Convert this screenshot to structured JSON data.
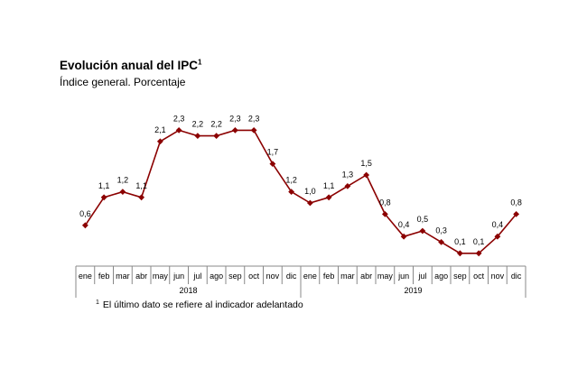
{
  "title": "Evolución anual del IPC",
  "title_sup": "1",
  "subtitle": "Índice general. Porcentaje",
  "footnote": {
    "marker": "1",
    "text": "El último dato se refiere al indicador adelantado"
  },
  "chart_data": {
    "type": "line",
    "title": "Evolución anual del IPC",
    "subtitle": "Índice general. Porcentaje",
    "xlabel": "",
    "ylabel": "",
    "grid": false,
    "legend": "none",
    "line_color": "#8B0000",
    "ylim": [
      0,
      2.5
    ],
    "categories": [
      "ene",
      "feb",
      "mar",
      "abr",
      "may",
      "jun",
      "jul",
      "ago",
      "sep",
      "oct",
      "nov",
      "dic",
      "ene",
      "feb",
      "mar",
      "abr",
      "may",
      "jun",
      "jul",
      "ago",
      "sep",
      "oct",
      "nov",
      "dic"
    ],
    "groups": [
      {
        "label": "2018",
        "start": 0,
        "end": 11
      },
      {
        "label": "2019",
        "start": 12,
        "end": 23
      }
    ],
    "values": [
      0.6,
      1.1,
      1.2,
      1.1,
      2.1,
      2.3,
      2.2,
      2.2,
      2.3,
      2.3,
      1.7,
      1.2,
      1.0,
      1.1,
      1.3,
      1.5,
      0.8,
      0.4,
      0.5,
      0.3,
      0.1,
      0.1,
      0.4,
      0.8
    ],
    "value_labels": [
      "0,6",
      "1,1",
      "1,2",
      "1,1",
      "2,1",
      "2,3",
      "2,2",
      "2,2",
      "2,3",
      "2,3",
      "1,7",
      "1,2",
      "1,0",
      "1,1",
      "1,3",
      "1,5",
      "0,8",
      "0,4",
      "0,5",
      "0,3",
      "0,1",
      "0,1",
      "0,4",
      "0,8"
    ]
  }
}
